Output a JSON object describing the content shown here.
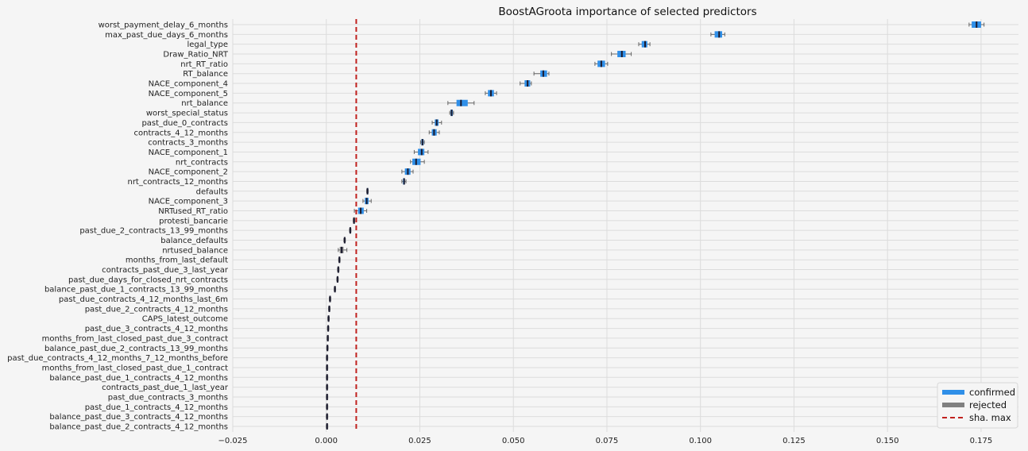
{
  "chart_data": {
    "type": "boxplot",
    "title": "BoostAGroota importance of selected predictors",
    "xlabel": "",
    "ylabel": "",
    "xlim": [
      -0.025,
      0.185
    ],
    "xticks": [
      -0.025,
      0.0,
      0.025,
      0.05,
      0.075,
      0.1,
      0.125,
      0.15,
      0.175
    ],
    "xtick_labels": [
      "−0.025",
      "0.000",
      "0.025",
      "0.050",
      "0.075",
      "0.100",
      "0.125",
      "0.150",
      "0.175"
    ],
    "grid": true,
    "legend_position": "bottom-right",
    "threshold": {
      "name": "sha. max",
      "value": 0.008,
      "color": "#c0211e"
    },
    "legend": [
      {
        "label": "confirmed",
        "color": "#2f8fe8",
        "kind": "patch"
      },
      {
        "label": "rejected",
        "color": "#808080",
        "kind": "patch"
      },
      {
        "label": "sha. max",
        "color": "#c0211e",
        "kind": "dashed"
      }
    ],
    "colors": {
      "confirmed": "#2f8fe8",
      "rejected": "#808080",
      "median": "#1a1a2e"
    },
    "predictors": [
      {
        "name": "worst_payment_delay_6_months",
        "status": "confirmed",
        "min": 0.1718,
        "q1": 0.1725,
        "median": 0.1738,
        "q3": 0.175,
        "max": 0.1758
      },
      {
        "name": "max_past_due_days_6_months",
        "status": "confirmed",
        "min": 0.1028,
        "q1": 0.1038,
        "median": 0.105,
        "q3": 0.1058,
        "max": 0.1065
      },
      {
        "name": "legal_type",
        "status": "confirmed",
        "min": 0.0835,
        "q1": 0.0843,
        "median": 0.0852,
        "q3": 0.0858,
        "max": 0.0865
      },
      {
        "name": "Draw_Ratio_NRT",
        "status": "confirmed",
        "min": 0.0762,
        "q1": 0.0778,
        "median": 0.079,
        "q3": 0.08,
        "max": 0.0815
      },
      {
        "name": "nrt_RT_ratio",
        "status": "confirmed",
        "min": 0.0718,
        "q1": 0.0725,
        "median": 0.0735,
        "q3": 0.0745,
        "max": 0.0752
      },
      {
        "name": "RT_balance",
        "status": "confirmed",
        "min": 0.0555,
        "q1": 0.0572,
        "median": 0.058,
        "q3": 0.059,
        "max": 0.0595
      },
      {
        "name": "NACE_component_4",
        "status": "confirmed",
        "min": 0.0518,
        "q1": 0.053,
        "median": 0.0538,
        "q3": 0.0545,
        "max": 0.0548
      },
      {
        "name": "NACE_component_5",
        "status": "confirmed",
        "min": 0.0425,
        "q1": 0.0432,
        "median": 0.044,
        "q3": 0.0448,
        "max": 0.0455
      },
      {
        "name": "nrt_balance",
        "status": "confirmed",
        "min": 0.0325,
        "q1": 0.0348,
        "median": 0.036,
        "q3": 0.0378,
        "max": 0.0395
      },
      {
        "name": "worst_special_status",
        "status": "confirmed",
        "min": 0.033,
        "q1": 0.0332,
        "median": 0.0335,
        "q3": 0.0338,
        "max": 0.034
      },
      {
        "name": "past_due_0_contracts",
        "status": "confirmed",
        "min": 0.0283,
        "q1": 0.029,
        "median": 0.0295,
        "q3": 0.03,
        "max": 0.0308
      },
      {
        "name": "contracts_4_12_months",
        "status": "confirmed",
        "min": 0.0275,
        "q1": 0.0282,
        "median": 0.0288,
        "q3": 0.0295,
        "max": 0.0302
      },
      {
        "name": "contracts_3_months",
        "status": "confirmed",
        "min": 0.0252,
        "q1": 0.0254,
        "median": 0.0257,
        "q3": 0.026,
        "max": 0.0262
      },
      {
        "name": "NACE_component_1",
        "status": "confirmed",
        "min": 0.0235,
        "q1": 0.0245,
        "median": 0.0255,
        "q3": 0.0262,
        "max": 0.0272
      },
      {
        "name": "nrt_contracts",
        "status": "confirmed",
        "min": 0.0225,
        "q1": 0.023,
        "median": 0.024,
        "q3": 0.0252,
        "max": 0.0262
      },
      {
        "name": "NACE_component_2",
        "status": "confirmed",
        "min": 0.0202,
        "q1": 0.021,
        "median": 0.0218,
        "q3": 0.0225,
        "max": 0.0232
      },
      {
        "name": "nrt_contracts_12_months",
        "status": "confirmed",
        "min": 0.0202,
        "q1": 0.0205,
        "median": 0.0208,
        "q3": 0.021,
        "max": 0.0213
      },
      {
        "name": "defaults",
        "status": "confirmed",
        "min": 0.0108,
        "q1": 0.0109,
        "median": 0.011,
        "q3": 0.0111,
        "max": 0.0112
      },
      {
        "name": "NACE_component_3",
        "status": "confirmed",
        "min": 0.0098,
        "q1": 0.0103,
        "median": 0.0108,
        "q3": 0.0113,
        "max": 0.012
      },
      {
        "name": "NRTused_RT_ratio",
        "status": "confirmed",
        "min": 0.0075,
        "q1": 0.0085,
        "median": 0.0092,
        "q3": 0.01,
        "max": 0.0108
      },
      {
        "name": "protesti_bancarie",
        "status": "rejected",
        "min": 0.0072,
        "q1": 0.0073,
        "median": 0.0074,
        "q3": 0.0075,
        "max": 0.0076
      },
      {
        "name": "past_due_2_contracts_13_99_months",
        "status": "rejected",
        "min": 0.0062,
        "q1": 0.0063,
        "median": 0.0064,
        "q3": 0.0065,
        "max": 0.0066
      },
      {
        "name": "balance_defaults",
        "status": "rejected",
        "min": 0.0047,
        "q1": 0.0048,
        "median": 0.0049,
        "q3": 0.005,
        "max": 0.0051
      },
      {
        "name": "nrtused_balance",
        "status": "rejected",
        "min": 0.0032,
        "q1": 0.0036,
        "median": 0.0041,
        "q3": 0.0046,
        "max": 0.0055
      },
      {
        "name": "months_from_last_default",
        "status": "rejected",
        "min": 0.0033,
        "q1": 0.0034,
        "median": 0.0035,
        "q3": 0.0036,
        "max": 0.0037
      },
      {
        "name": "contracts_past_due_3_last_year",
        "status": "rejected",
        "min": 0.003,
        "q1": 0.0031,
        "median": 0.0032,
        "q3": 0.0033,
        "max": 0.0034
      },
      {
        "name": "past_due_days_for_closed_nrt_contracts",
        "status": "rejected",
        "min": 0.0028,
        "q1": 0.0029,
        "median": 0.003,
        "q3": 0.0031,
        "max": 0.0032
      },
      {
        "name": "balance_past_due_1_contracts_13_99_months",
        "status": "rejected",
        "min": 0.0021,
        "q1": 0.0022,
        "median": 0.0023,
        "q3": 0.0024,
        "max": 0.0025
      },
      {
        "name": "past_due_contracts_4_12_months_last_6m",
        "status": "rejected",
        "min": 0.0008,
        "q1": 0.0009,
        "median": 0.001,
        "q3": 0.0011,
        "max": 0.0012
      },
      {
        "name": "past_due_2_contracts_4_12_months",
        "status": "rejected",
        "min": 0.0006,
        "q1": 0.0007,
        "median": 0.0008,
        "q3": 0.0009,
        "max": 0.001
      },
      {
        "name": "CAPS_latest_outcome",
        "status": "rejected",
        "min": 0.0004,
        "q1": 0.0005,
        "median": 0.0006,
        "q3": 0.0007,
        "max": 0.0008
      },
      {
        "name": "past_due_3_contracts_4_12_months",
        "status": "rejected",
        "min": 0.0003,
        "q1": 0.0004,
        "median": 0.0005,
        "q3": 0.0006,
        "max": 0.0007
      },
      {
        "name": "months_from_last_closed_past_due_3_contract",
        "status": "rejected",
        "min": 0.0002,
        "q1": 0.0003,
        "median": 0.0004,
        "q3": 0.0005,
        "max": 0.0006
      },
      {
        "name": "balance_past_due_2_contracts_13_99_months",
        "status": "rejected",
        "min": 0.0001,
        "q1": 0.0002,
        "median": 0.0003,
        "q3": 0.0004,
        "max": 0.0005
      },
      {
        "name": "past_due_contracts_4_12_months_7_12_months_before",
        "status": "rejected",
        "min": 0.0,
        "q1": 0.0001,
        "median": 0.0002,
        "q3": 0.0003,
        "max": 0.0004
      },
      {
        "name": "months_from_last_closed_past_due_1_contract",
        "status": "rejected",
        "min": 0.0,
        "q1": 0.0001,
        "median": 0.0002,
        "q3": 0.0003,
        "max": 0.0004
      },
      {
        "name": "balance_past_due_1_contracts_4_12_months",
        "status": "rejected",
        "min": 0.0,
        "q1": 0.0001,
        "median": 0.0002,
        "q3": 0.0003,
        "max": 0.0004
      },
      {
        "name": "contracts_past_due_1_last_year",
        "status": "rejected",
        "min": 0.0,
        "q1": 0.0001,
        "median": 0.0002,
        "q3": 0.0003,
        "max": 0.0004
      },
      {
        "name": "past_due_contracts_3_months",
        "status": "rejected",
        "min": 0.0,
        "q1": 0.0001,
        "median": 0.0002,
        "q3": 0.0003,
        "max": 0.0004
      },
      {
        "name": "past_due_1_contracts_4_12_months",
        "status": "rejected",
        "min": 0.0,
        "q1": 0.0001,
        "median": 0.0002,
        "q3": 0.0003,
        "max": 0.0004
      },
      {
        "name": "balance_past_due_3_contracts_4_12_months",
        "status": "rejected",
        "min": 0.0,
        "q1": 0.0001,
        "median": 0.0002,
        "q3": 0.0003,
        "max": 0.0004
      },
      {
        "name": "balance_past_due_2_contracts_4_12_months",
        "status": "rejected",
        "min": 0.0,
        "q1": 0.0001,
        "median": 0.0002,
        "q3": 0.0003,
        "max": 0.0004
      }
    ]
  }
}
